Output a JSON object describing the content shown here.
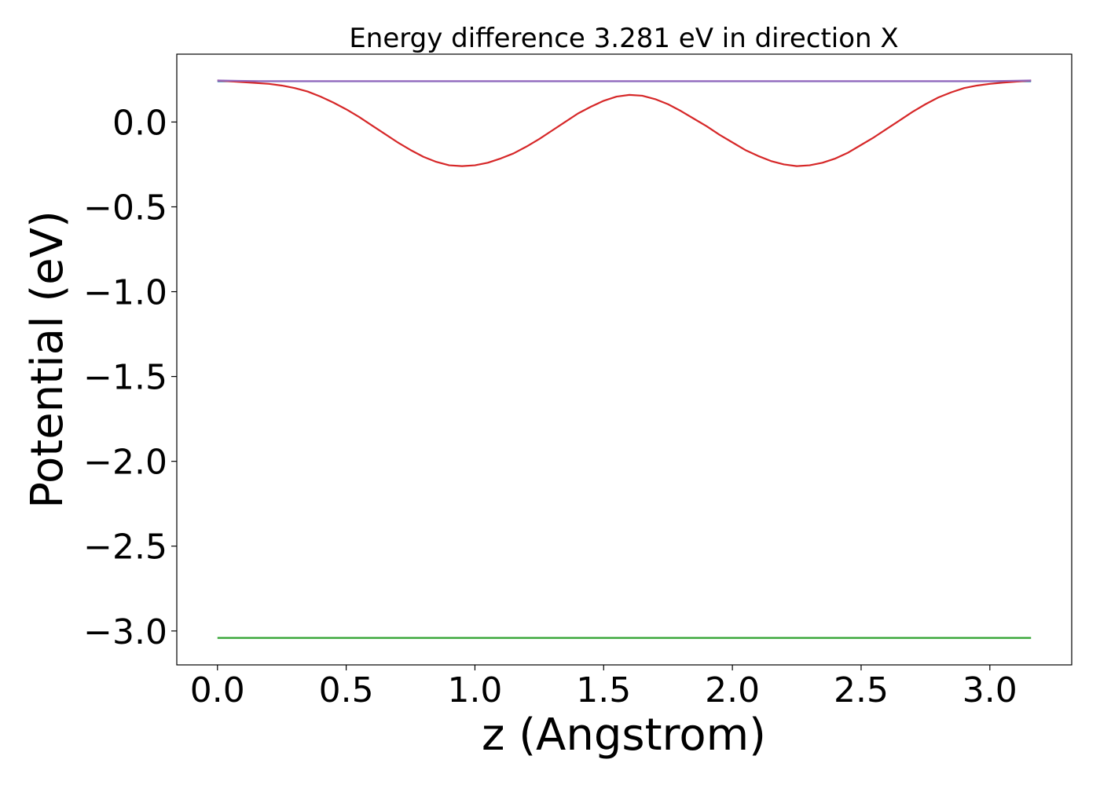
{
  "chart_data": {
    "type": "line",
    "title": "Energy difference 3.281 eV in direction X",
    "xlabel": "z (Angstrom)",
    "ylabel": "Potential (eV)",
    "xlim": [
      -0.158,
      3.318
    ],
    "ylim": [
      -3.2,
      0.4
    ],
    "xticks": [
      0.0,
      0.5,
      1.0,
      1.5,
      2.0,
      2.5,
      3.0
    ],
    "xtick_labels": [
      "0.0",
      "0.5",
      "1.0",
      "1.5",
      "2.0",
      "2.5",
      "3.0"
    ],
    "yticks": [
      0.0,
      -0.5,
      -1.0,
      -1.5,
      -2.0,
      -2.5,
      -3.0
    ],
    "ytick_labels": [
      "0.0",
      "−0.5",
      "−1.0",
      "−1.5",
      "−2.0",
      "−2.5",
      "−3.0"
    ],
    "grid": false,
    "series": [
      {
        "color": "#1f77b4",
        "x": [
          0.0,
          3.16
        ],
        "y": [
          0.24,
          0.24
        ]
      },
      {
        "color": "#2ca02c",
        "x": [
          0.0,
          3.16
        ],
        "y": [
          -3.041,
          -3.041
        ]
      },
      {
        "color": "#d62728",
        "x": [
          0.0,
          0.1,
          0.2,
          0.25,
          0.3,
          0.35,
          0.4,
          0.45,
          0.5,
          0.55,
          0.6,
          0.65,
          0.7,
          0.75,
          0.8,
          0.85,
          0.9,
          0.95,
          1.0,
          1.05,
          1.1,
          1.15,
          1.2,
          1.25,
          1.3,
          1.35,
          1.4,
          1.45,
          1.5,
          1.55,
          1.6,
          1.65,
          1.7,
          1.75,
          1.8,
          1.85,
          1.9,
          1.95,
          2.0,
          2.05,
          2.1,
          2.15,
          2.2,
          2.25,
          2.3,
          2.35,
          2.4,
          2.45,
          2.5,
          2.55,
          2.6,
          2.65,
          2.7,
          2.75,
          2.8,
          2.85,
          2.9,
          2.95,
          3.0,
          3.05,
          3.1,
          3.16
        ],
        "y": [
          0.245,
          0.235,
          0.225,
          0.215,
          0.2,
          0.18,
          0.15,
          0.115,
          0.075,
          0.03,
          -0.02,
          -0.07,
          -0.12,
          -0.165,
          -0.205,
          -0.235,
          -0.255,
          -0.26,
          -0.255,
          -0.24,
          -0.215,
          -0.185,
          -0.145,
          -0.1,
          -0.05,
          0.0,
          0.05,
          0.09,
          0.125,
          0.15,
          0.16,
          0.155,
          0.135,
          0.105,
          0.065,
          0.02,
          -0.025,
          -0.075,
          -0.12,
          -0.165,
          -0.2,
          -0.23,
          -0.25,
          -0.26,
          -0.255,
          -0.24,
          -0.215,
          -0.18,
          -0.135,
          -0.09,
          -0.04,
          0.01,
          0.06,
          0.105,
          0.145,
          0.175,
          0.2,
          0.215,
          0.225,
          0.232,
          0.238,
          0.245
        ]
      },
      {
        "color": "#9467bd",
        "x": [
          0.0,
          0.08,
          0.16,
          3.0,
          3.08,
          3.16
        ],
        "y": [
          0.245,
          0.243,
          0.241,
          0.241,
          0.243,
          0.245
        ]
      }
    ]
  }
}
